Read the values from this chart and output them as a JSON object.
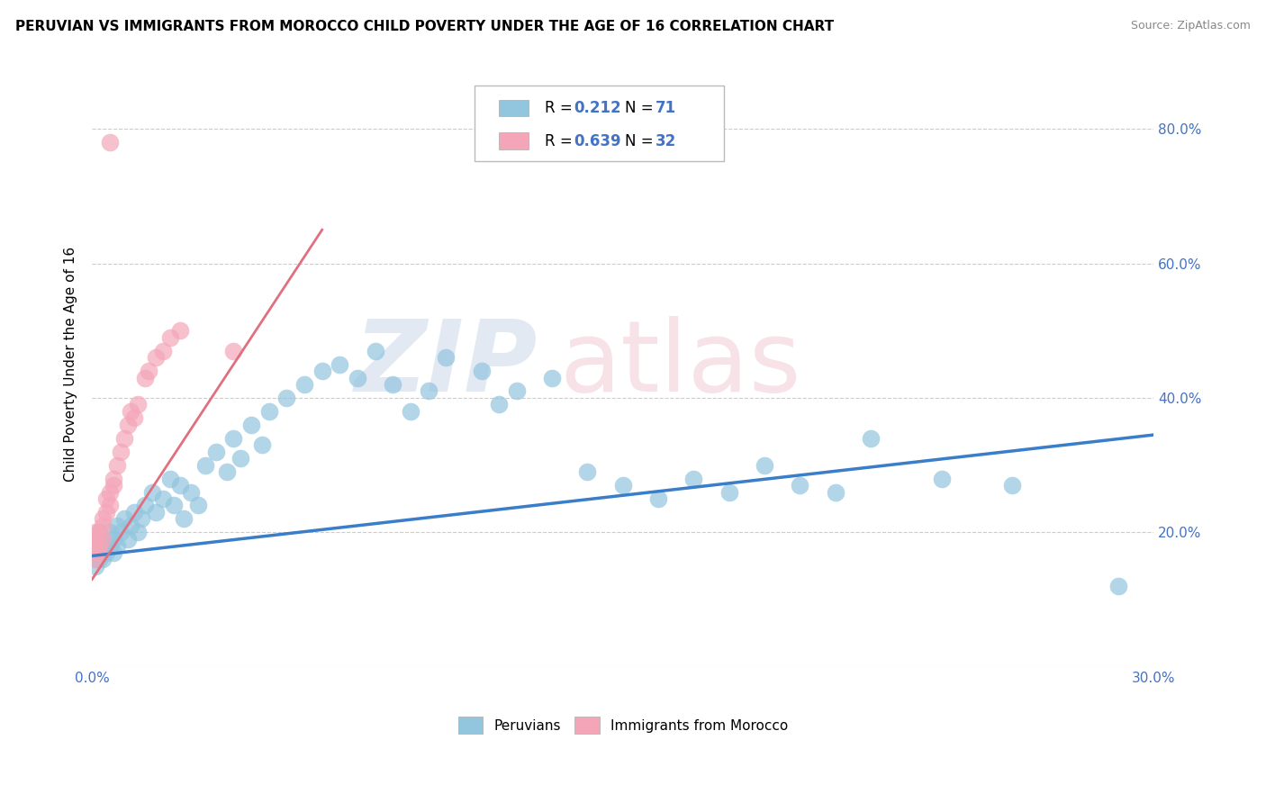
{
  "title": "PERUVIAN VS IMMIGRANTS FROM MOROCCO CHILD POVERTY UNDER THE AGE OF 16 CORRELATION CHART",
  "source": "Source: ZipAtlas.com",
  "ylabel": "Child Poverty Under the Age of 16",
  "peruvian_R": "0.212",
  "peruvian_N": "71",
  "morocco_R": "0.639",
  "morocco_N": "32",
  "legend_labels": [
    "Peruvians",
    "Immigrants from Morocco"
  ],
  "peruvian_color": "#92C5DE",
  "morocco_color": "#F4A6B8",
  "peruvian_line_color": "#3A7DC9",
  "morocco_line_color": "#E07080",
  "x_lim": [
    0.0,
    0.3
  ],
  "y_lim": [
    0.0,
    0.9
  ],
  "y_ticks": [
    0.0,
    0.2,
    0.4,
    0.6,
    0.8
  ],
  "watermark_zip_color": "#D0D8E8",
  "watermark_atlas_color": "#F0C0C8",
  "peru_line_x": [
    0.0,
    0.3
  ],
  "peru_line_y": [
    0.165,
    0.345
  ],
  "morocco_line_x": [
    0.0,
    0.065
  ],
  "morocco_line_y": [
    0.13,
    0.65
  ],
  "peru_x": [
    0.001,
    0.001,
    0.001,
    0.001,
    0.001,
    0.002,
    0.002,
    0.002,
    0.002,
    0.003,
    0.003,
    0.003,
    0.004,
    0.004,
    0.005,
    0.005,
    0.006,
    0.006,
    0.007,
    0.007,
    0.008,
    0.009,
    0.01,
    0.011,
    0.012,
    0.013,
    0.014,
    0.015,
    0.017,
    0.018,
    0.02,
    0.022,
    0.023,
    0.025,
    0.026,
    0.028,
    0.03,
    0.032,
    0.035,
    0.038,
    0.04,
    0.042,
    0.045,
    0.048,
    0.05,
    0.055,
    0.06,
    0.065,
    0.07,
    0.075,
    0.08,
    0.085,
    0.09,
    0.095,
    0.1,
    0.11,
    0.115,
    0.12,
    0.13,
    0.14,
    0.15,
    0.16,
    0.17,
    0.18,
    0.19,
    0.2,
    0.21,
    0.22,
    0.24,
    0.26,
    0.29
  ],
  "peru_y": [
    0.16,
    0.18,
    0.17,
    0.19,
    0.15,
    0.17,
    0.18,
    0.16,
    0.2,
    0.17,
    0.19,
    0.16,
    0.18,
    0.17,
    0.2,
    0.18,
    0.19,
    0.17,
    0.21,
    0.18,
    0.2,
    0.22,
    0.19,
    0.21,
    0.23,
    0.2,
    0.22,
    0.24,
    0.26,
    0.23,
    0.25,
    0.28,
    0.24,
    0.27,
    0.22,
    0.26,
    0.24,
    0.3,
    0.32,
    0.29,
    0.34,
    0.31,
    0.36,
    0.33,
    0.38,
    0.4,
    0.42,
    0.44,
    0.45,
    0.43,
    0.47,
    0.42,
    0.38,
    0.41,
    0.46,
    0.44,
    0.39,
    0.41,
    0.43,
    0.29,
    0.27,
    0.25,
    0.28,
    0.26,
    0.3,
    0.27,
    0.26,
    0.34,
    0.28,
    0.27,
    0.12
  ],
  "morocco_x": [
    0.001,
    0.001,
    0.001,
    0.001,
    0.001,
    0.002,
    0.002,
    0.002,
    0.003,
    0.003,
    0.003,
    0.004,
    0.004,
    0.005,
    0.005,
    0.006,
    0.006,
    0.007,
    0.008,
    0.009,
    0.01,
    0.011,
    0.012,
    0.013,
    0.015,
    0.016,
    0.018,
    0.02,
    0.022,
    0.025,
    0.04,
    0.005
  ],
  "morocco_y": [
    0.16,
    0.17,
    0.18,
    0.19,
    0.2,
    0.17,
    0.18,
    0.2,
    0.19,
    0.21,
    0.22,
    0.23,
    0.25,
    0.24,
    0.26,
    0.27,
    0.28,
    0.3,
    0.32,
    0.34,
    0.36,
    0.38,
    0.37,
    0.39,
    0.43,
    0.44,
    0.46,
    0.47,
    0.49,
    0.5,
    0.47,
    0.78
  ]
}
